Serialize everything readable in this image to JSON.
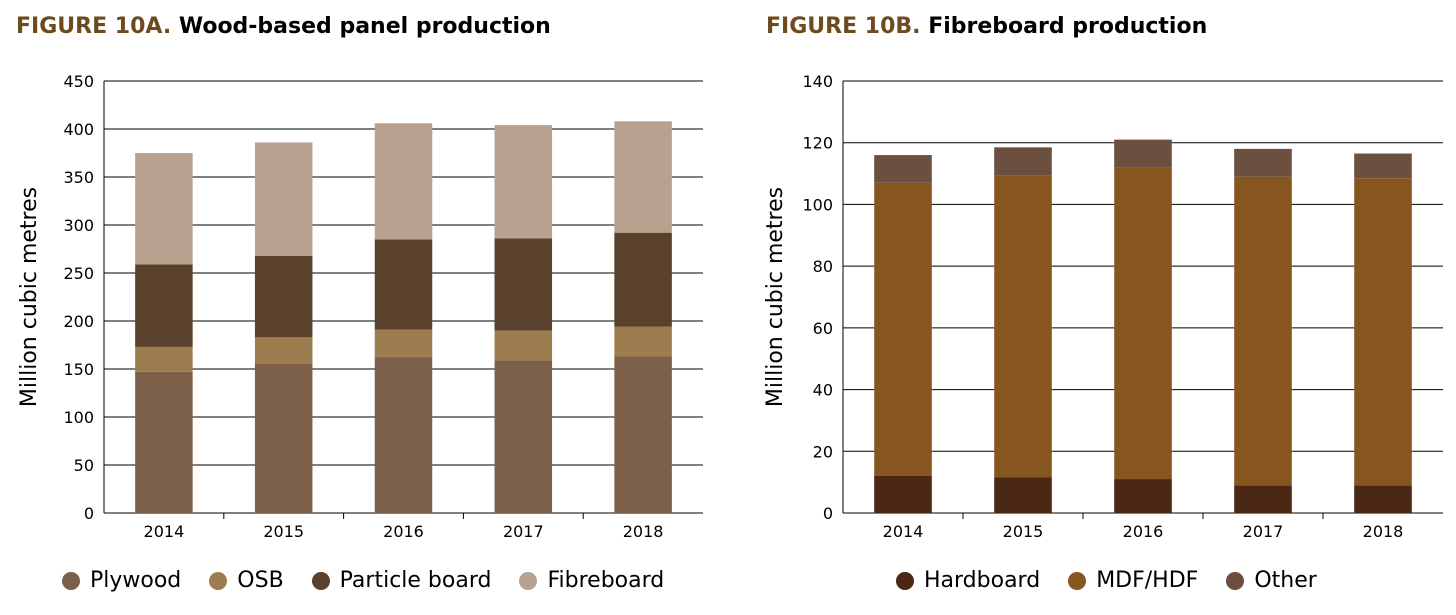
{
  "figure_a": {
    "label": "FIGURE 10A.",
    "title": "Wood-based panel production",
    "colors": {
      "Plywood": "#7d604a",
      "OSB": "#9d7d50",
      "Particle board": "#5a412b",
      "Fibreboard": "#b9a18f"
    }
  },
  "figure_b": {
    "label": "FIGURE 10B.",
    "title": "Fibreboard production",
    "colors": {
      "Hardboard": "#4b2815",
      "MDF/HDF": "#875620",
      "Other": "#6b5040"
    }
  },
  "chart_data": [
    {
      "type": "bar",
      "stacked": true,
      "title": "Wood-based panel production",
      "xlabel": "",
      "ylabel": "Million cubic metres",
      "ylim": [
        0,
        450
      ],
      "yticks": [
        0,
        50,
        100,
        150,
        200,
        250,
        300,
        350,
        400,
        450
      ],
      "categories": [
        "2014",
        "2015",
        "2016",
        "2017",
        "2018"
      ],
      "series": [
        {
          "name": "Plywood",
          "values": [
            147,
            156,
            162,
            159,
            163
          ]
        },
        {
          "name": "OSB",
          "values": [
            26,
            27,
            29,
            31,
            31
          ]
        },
        {
          "name": "Particle board",
          "values": [
            86,
            85,
            94,
            96,
            98
          ]
        },
        {
          "name": "Fibreboard",
          "values": [
            116,
            118,
            121,
            118,
            116
          ]
        }
      ],
      "legend": "bottom",
      "grid": true
    },
    {
      "type": "bar",
      "stacked": true,
      "title": "Fibreboard production",
      "xlabel": "",
      "ylabel": "Million cubic metres",
      "ylim": [
        0,
        140
      ],
      "yticks": [
        0,
        20,
        40,
        60,
        80,
        100,
        120,
        140
      ],
      "categories": [
        "2014",
        "2015",
        "2016",
        "2017",
        "2018"
      ],
      "series": [
        {
          "name": "Hardboard",
          "values": [
            12,
            11.5,
            11,
            9,
            9
          ]
        },
        {
          "name": "MDF/HDF",
          "values": [
            95,
            98,
            101,
            100,
            99.5
          ]
        },
        {
          "name": "Other",
          "values": [
            9,
            9,
            9,
            9,
            8
          ]
        }
      ],
      "legend": "bottom",
      "grid": true
    }
  ]
}
